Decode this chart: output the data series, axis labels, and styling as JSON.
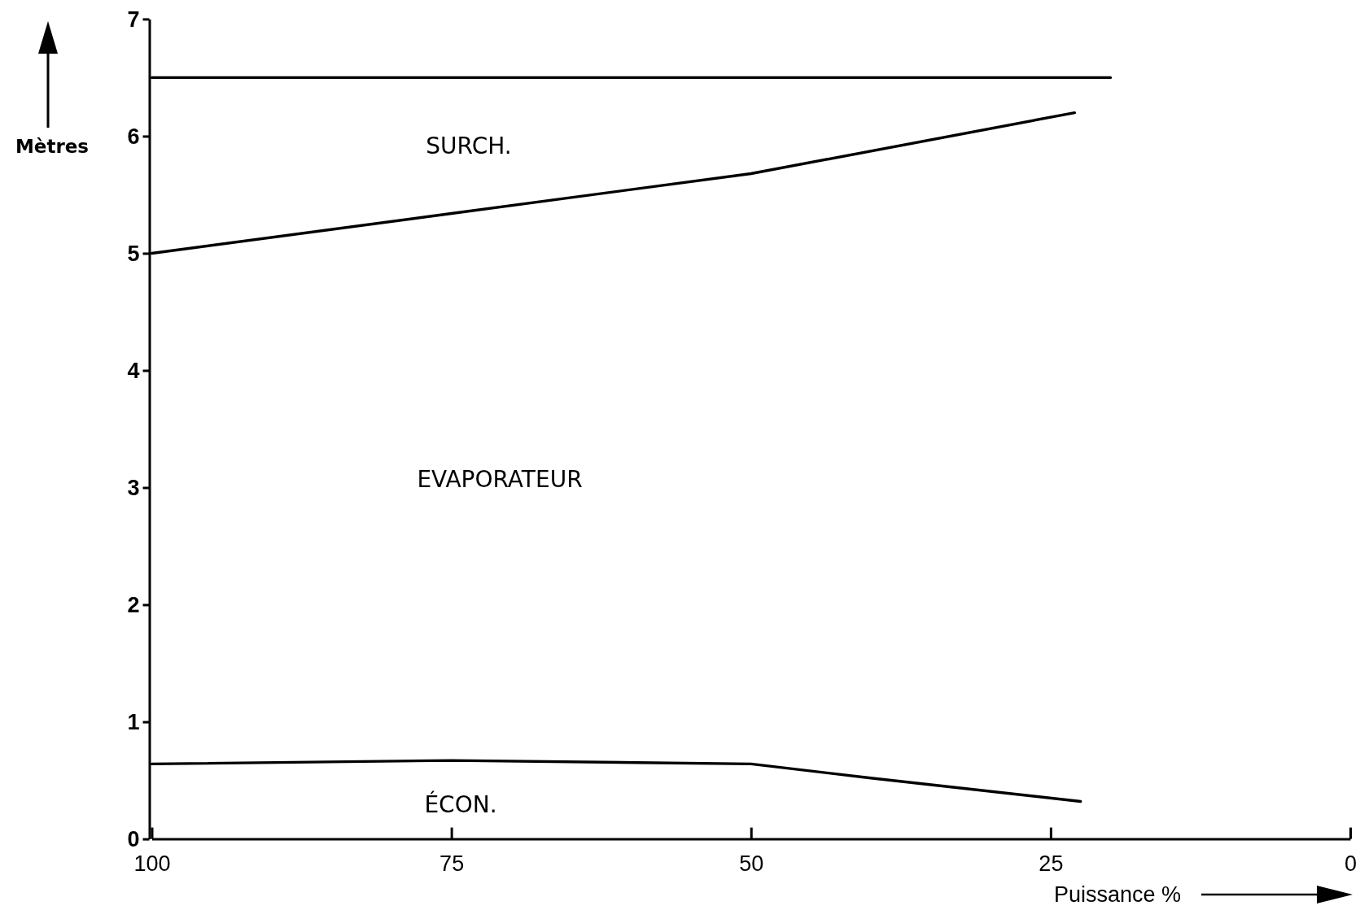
{
  "chart_data": {
    "type": "line",
    "xlabel": "Puissance %",
    "ylabel": "Mètres",
    "series": [
      {
        "color": "#000000",
        "x": [
          100,
          20
        ],
        "values": [
          6.5,
          6.5
        ]
      },
      {
        "color": "#000000",
        "x": [
          100,
          75,
          50,
          23
        ],
        "values": [
          5.0,
          5.34,
          5.68,
          6.2
        ]
      },
      {
        "color": "#000000",
        "x": [
          100,
          75,
          50,
          40,
          22.5
        ],
        "values": [
          0.64,
          0.67,
          0.64,
          0.52,
          0.32
        ]
      }
    ],
    "xlim": [
      100,
      0
    ],
    "ylim": [
      0,
      7
    ],
    "xticks": [
      100,
      75,
      50,
      25,
      0
    ],
    "yticks": [
      0,
      1,
      2,
      3,
      4,
      5,
      6,
      7
    ],
    "line_style": "solid",
    "annotations": [
      "SURCH.",
      "EVAPORATEUR",
      "ÉCON."
    ]
  }
}
